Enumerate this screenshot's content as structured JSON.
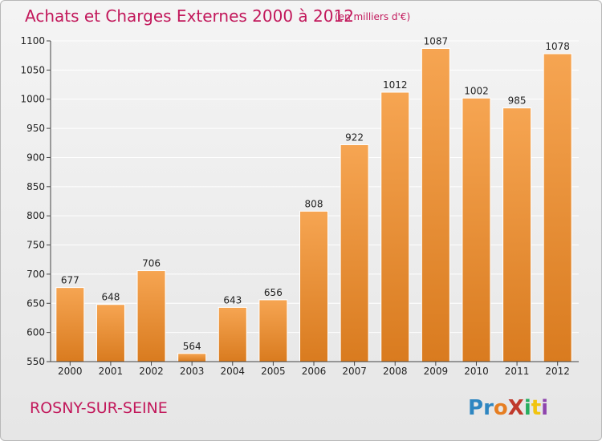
{
  "title": "Achats et Charges Externes 2000 à 2012",
  "subtitle": "(en milliers d'€)",
  "location": "ROSNY-SUR-SEINE",
  "logo": {
    "text": "ProXiti",
    "letters": [
      {
        "ch": "P",
        "color": "#2e86c1"
      },
      {
        "ch": "r",
        "color": "#2e86c1"
      },
      {
        "ch": "o",
        "color": "#e67e22"
      },
      {
        "ch": "X",
        "color": "#c0392b"
      },
      {
        "ch": "i",
        "color": "#27ae60"
      },
      {
        "ch": "t",
        "color": "#f1c40f"
      },
      {
        "ch": "i",
        "color": "#8e44ad"
      }
    ]
  },
  "colors": {
    "bar_top": "#f6a552",
    "bar_bottom": "#d97b1f",
    "title": "#c2185b",
    "grid": "#ffffff"
  },
  "chart_data": {
    "type": "bar",
    "categories": [
      "2000",
      "2001",
      "2002",
      "2003",
      "2004",
      "2005",
      "2006",
      "2007",
      "2008",
      "2009",
      "2010",
      "2011",
      "2012"
    ],
    "values": [
      677,
      648,
      706,
      564,
      643,
      656,
      808,
      922,
      1012,
      1087,
      1002,
      985,
      1078
    ],
    "ylim": [
      550,
      1100
    ],
    "yticks": [
      550,
      600,
      650,
      700,
      750,
      800,
      850,
      900,
      950,
      1000,
      1050,
      1100
    ],
    "grid": true
  }
}
